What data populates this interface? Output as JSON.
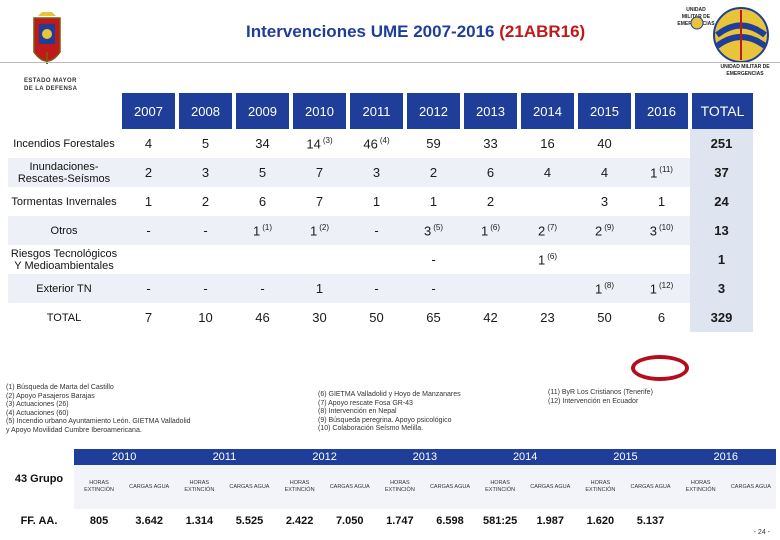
{
  "header": {
    "title_main": "Intervenciones UME 2007-2016",
    "title_accent": "(21ABR16)",
    "left_logo_label": "ESTADO MAYOR DE LA DEFENSA",
    "right_small_label": "UNIDAD MILITAR DE EMERGENCIAS",
    "right_big_label": "UNIDAD MILITAR DE EMERGENCIAS",
    "colors": {
      "primary": "#1f3e9a",
      "accent": "#c0191a",
      "ring": "#b40d1e"
    }
  },
  "table": {
    "years": [
      "2007",
      "2008",
      "2009",
      "2010",
      "2011",
      "2012",
      "2013",
      "2014",
      "2015",
      "2016"
    ],
    "total_label": "TOTAL",
    "rows": [
      {
        "label": "Incendios Forestales",
        "cells": [
          {
            "v": "4"
          },
          {
            "v": "5"
          },
          {
            "v": "34"
          },
          {
            "v": "14",
            "n": "(3)"
          },
          {
            "v": "46",
            "n": "(4)"
          },
          {
            "v": "59"
          },
          {
            "v": "33"
          },
          {
            "v": "16"
          },
          {
            "v": "40"
          },
          {
            "v": ""
          }
        ],
        "total": "251"
      },
      {
        "label": "Inundaciones-Rescates-Seísmos",
        "cells": [
          {
            "v": "2"
          },
          {
            "v": "3"
          },
          {
            "v": "5"
          },
          {
            "v": "7"
          },
          {
            "v": "3"
          },
          {
            "v": "2"
          },
          {
            "v": "6"
          },
          {
            "v": "4"
          },
          {
            "v": "4"
          },
          {
            "v": "1",
            "n": "(11)"
          }
        ],
        "total": "37"
      },
      {
        "label": "Tormentas Invernales",
        "cells": [
          {
            "v": "1"
          },
          {
            "v": "2"
          },
          {
            "v": "6"
          },
          {
            "v": "7"
          },
          {
            "v": "1"
          },
          {
            "v": "1"
          },
          {
            "v": "2"
          },
          {
            "v": ""
          },
          {
            "v": "3"
          },
          {
            "v": "1"
          }
        ],
        "total": "24"
      },
      {
        "label": "Otros",
        "cells": [
          {
            "v": "-"
          },
          {
            "v": "-"
          },
          {
            "v": "1",
            "n": "(1)"
          },
          {
            "v": "1",
            "n": "(2)"
          },
          {
            "v": "-"
          },
          {
            "v": "3",
            "n": "(5)"
          },
          {
            "v": "1",
            "n": "(6)"
          },
          {
            "v": "2",
            "n": "(7)"
          },
          {
            "v": "2",
            "n": "(9)"
          },
          {
            "v": "3",
            "n": "(10)"
          }
        ],
        "total": "13"
      },
      {
        "label": "Riesgos Tecnológicos Y Medioambientales",
        "cells": [
          {
            "v": ""
          },
          {
            "v": ""
          },
          {
            "v": ""
          },
          {
            "v": ""
          },
          {
            "v": ""
          },
          {
            "v": "-"
          },
          {
            "v": ""
          },
          {
            "v": "1",
            "n": "(6)"
          },
          {
            "v": ""
          },
          {
            "v": ""
          }
        ],
        "total": "1"
      },
      {
        "label": "Exterior TN",
        "cells": [
          {
            "v": "-"
          },
          {
            "v": "-"
          },
          {
            "v": "-"
          },
          {
            "v": "1"
          },
          {
            "v": "-"
          },
          {
            "v": "-"
          },
          {
            "v": ""
          },
          {
            "v": ""
          },
          {
            "v": "1",
            "n": "(8)"
          },
          {
            "v": "1",
            "n": "(12)"
          }
        ],
        "total": "3"
      },
      {
        "label": "TOTAL",
        "cells": [
          {
            "v": "7"
          },
          {
            "v": "10"
          },
          {
            "v": "46"
          },
          {
            "v": "30"
          },
          {
            "v": "50"
          },
          {
            "v": "65"
          },
          {
            "v": "42"
          },
          {
            "v": "23"
          },
          {
            "v": "50"
          },
          {
            "v": "6"
          }
        ],
        "total": "329"
      }
    ]
  },
  "notes_left": [
    "(1)   Búsqueda de Marta del Castillo",
    "(2)   Apoyo Pasajeros Barajas",
    "(3)   Actuaciones (26)",
    "(4)   Actuaciones (60)",
    "(5)   Incendio urbano Ayuntamiento León. GIETMA Valladolid",
    "        y Apoyo Movilidad Cumbre Iberoamericana."
  ],
  "notes_middle": [
    "(6)   GIETMA Valladolid y Hoyo de Manzanares",
    "(7)   Apoyo rescate Fosa GR-43",
    "(8)   Intervención en Nepal",
    "(9)   Búsqueda peregrina. Apoyo psicológico",
    "(10)  Colaboración Seísmo Melilla."
  ],
  "notes_right": [
    "(11) ByR Los Cristianos (Tenerife)",
    "(12) Intervención en Ecuador"
  ],
  "bottom": {
    "years": [
      "2010",
      "2011",
      "2012",
      "2013",
      "2014",
      "2015",
      "2016"
    ],
    "side_top": "43 Grupo",
    "side_bottom": "FF. AA.",
    "sub_headers": [
      "HORAS EXTINCIÓN",
      "CARGAS AGUA"
    ],
    "values": [
      "805",
      "3.642",
      "1.314",
      "5.525",
      "2.422",
      "7.050",
      "1.747",
      "6.598",
      "581:25",
      "1.987",
      "1.620",
      "5.137",
      "",
      ""
    ]
  },
  "page_number": "- 24 -"
}
